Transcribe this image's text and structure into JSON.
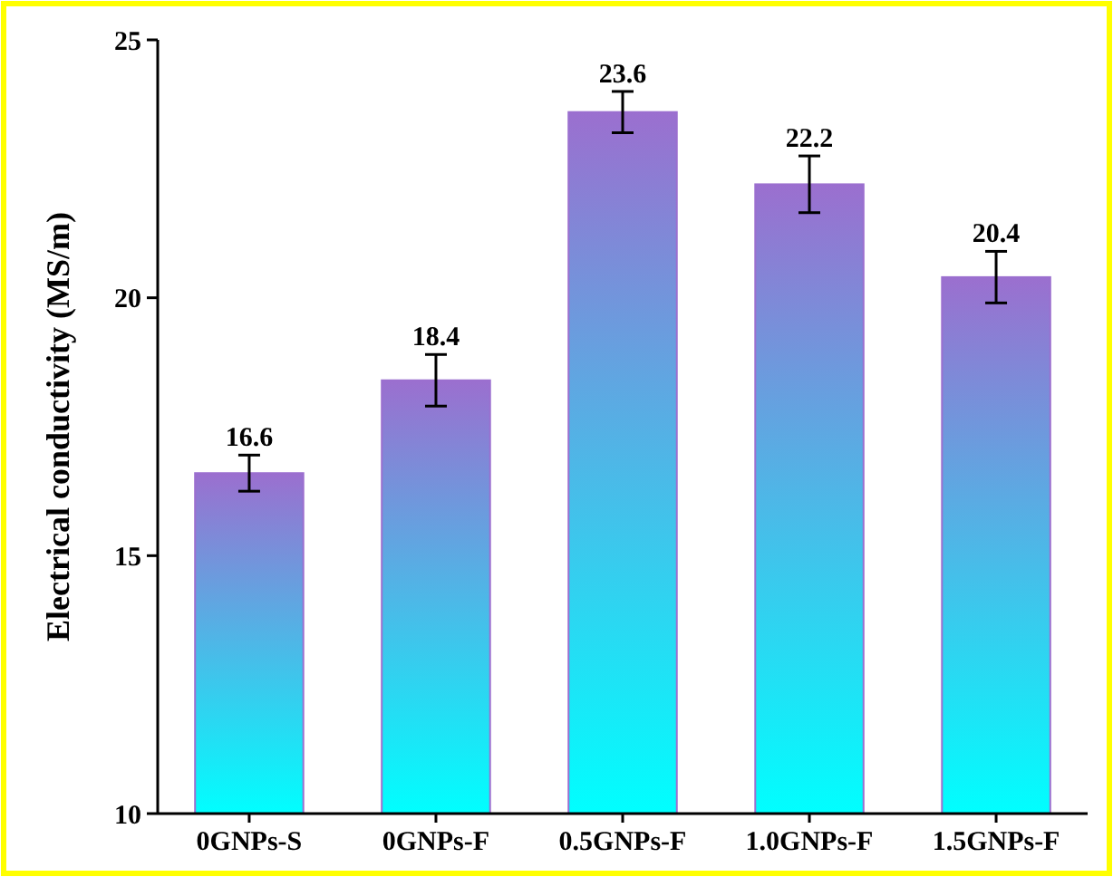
{
  "chart_data": {
    "type": "bar",
    "ylabel": "Electrical conductivity (MS/m)",
    "categories": [
      "0GNPs-S",
      "0GNPs-F",
      "0.5GNPs-F",
      "1.0GNPs-F",
      "1.5GNPs-F"
    ],
    "values": [
      16.6,
      18.4,
      23.6,
      22.2,
      20.4
    ],
    "errors": [
      0.35,
      0.5,
      0.4,
      0.55,
      0.5
    ],
    "color": "#9b6fcf",
    "ylim": [
      10,
      25
    ],
    "yticks": [
      10,
      15,
      20,
      25
    ],
    "data_labels": true,
    "grid": false
  }
}
